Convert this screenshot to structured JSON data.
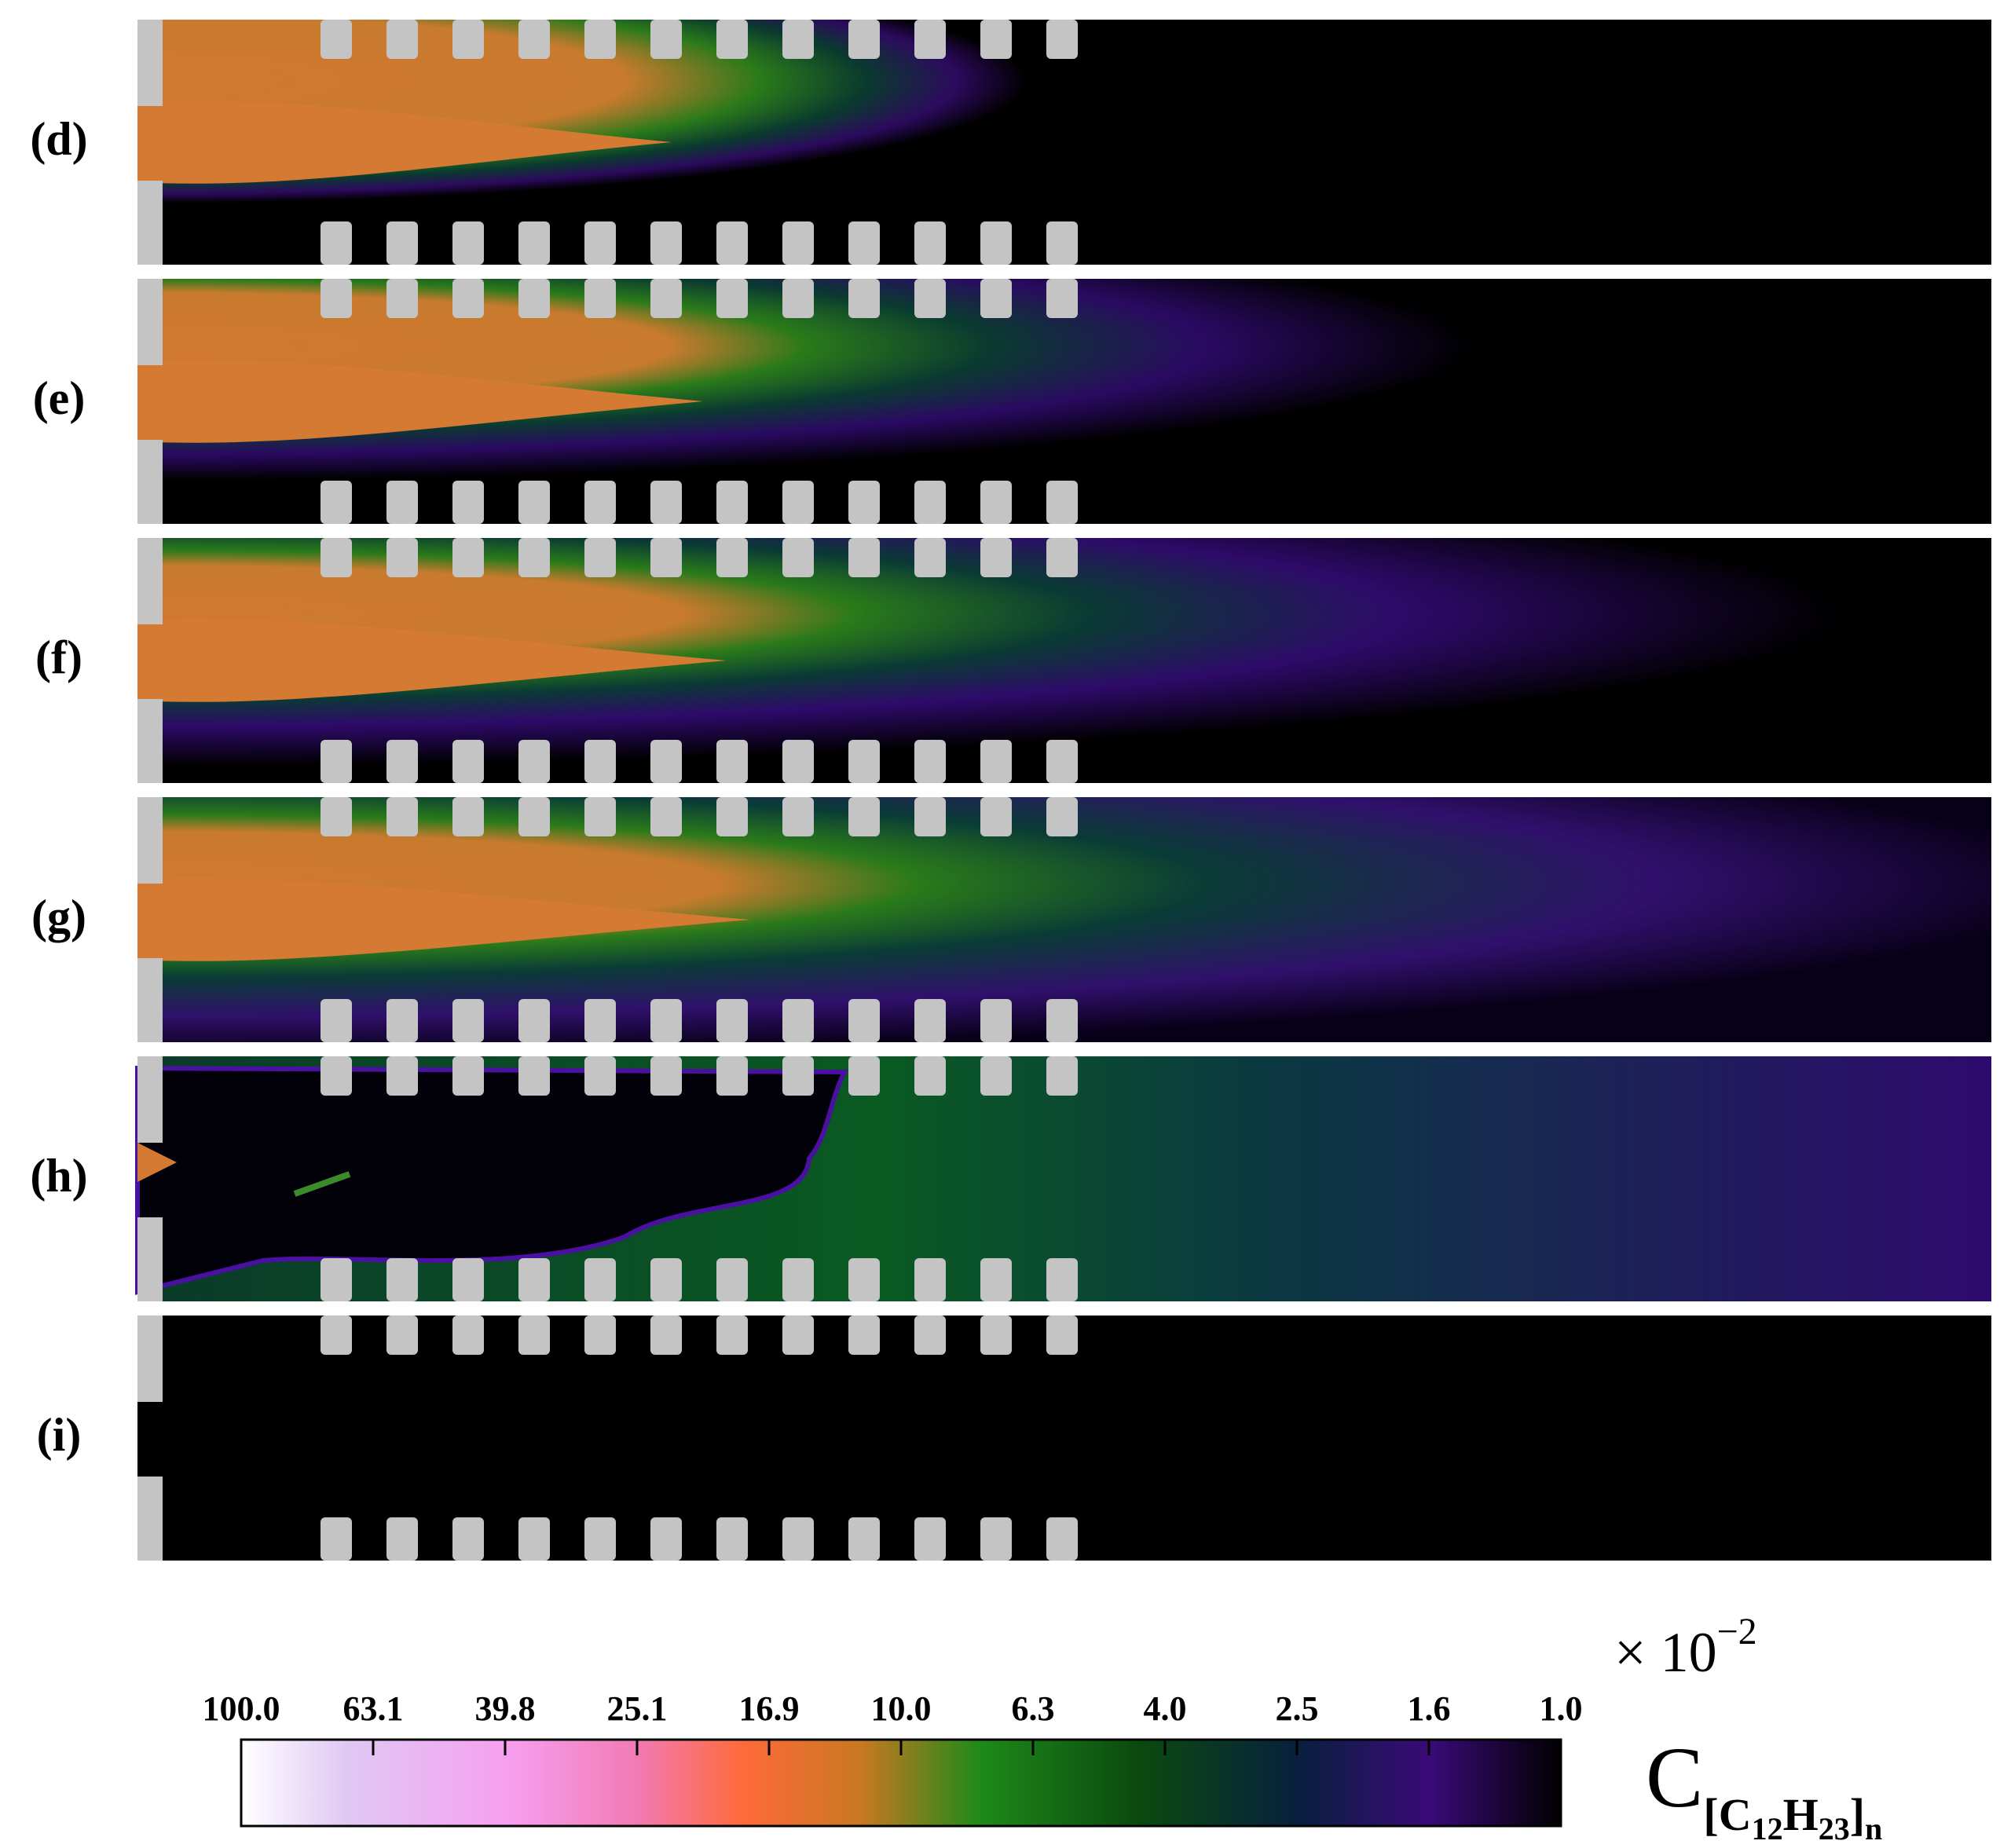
{
  "panels": [
    {
      "label": "(d)",
      "state": "d"
    },
    {
      "label": "(e)",
      "state": "e"
    },
    {
      "label": "(f)",
      "state": "f"
    },
    {
      "label": "(g)",
      "state": "g"
    },
    {
      "label": "(h)",
      "state": "h"
    },
    {
      "label": "(i)",
      "state": "i"
    }
  ],
  "colorbar": {
    "ticks": [
      "100.0",
      "63.1",
      "39.8",
      "25.1",
      "16.9",
      "10.0",
      "6.3",
      "4.0",
      "2.5",
      "1.6",
      "1.0"
    ],
    "scale_factor_base": "× 10",
    "scale_factor_exp": "−2",
    "title_main": "C",
    "title_sub_open": "[C",
    "title_sub_n1": "12",
    "title_sub_mid": "H",
    "title_sub_n2": "23",
    "title_sub_close": "]",
    "title_sub_n": "n",
    "colors": [
      "#ffffff",
      "#e0c8f4",
      "#f6a0f0",
      "#f27ab4",
      "#ff6a3a",
      "#c87820",
      "#1e8a1a",
      "#0b4a0e",
      "#08203e",
      "#3a0a78",
      "#000000"
    ]
  }
}
